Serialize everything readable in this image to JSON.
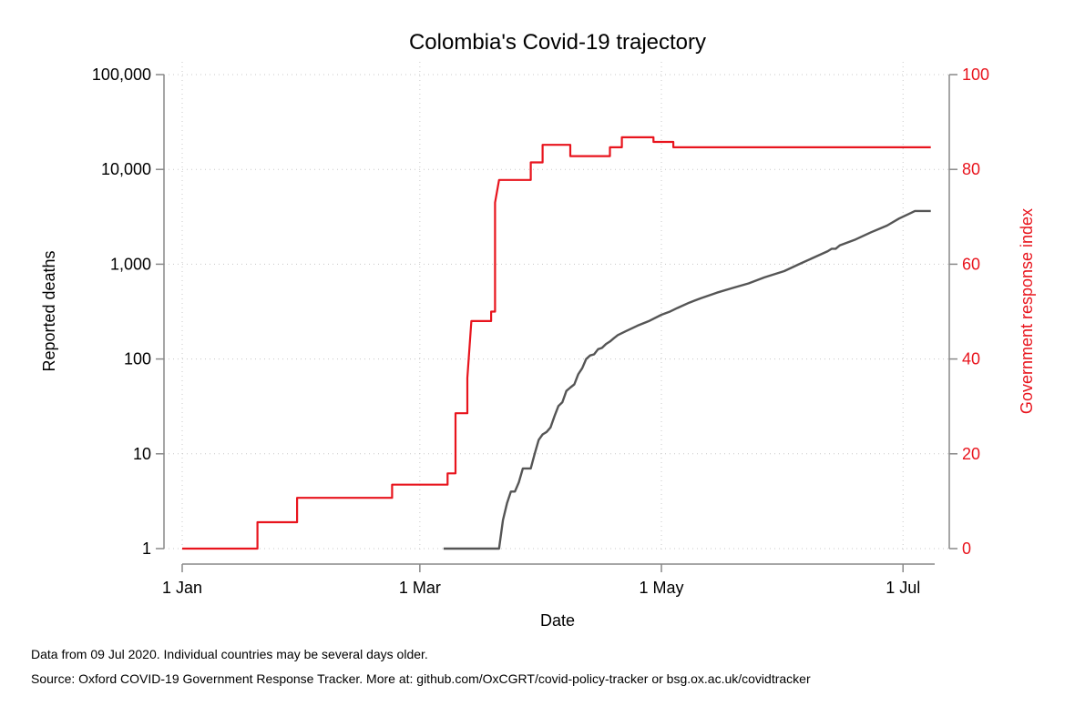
{
  "chart_data": {
    "type": "line",
    "title": "Colombia's Covid-19 trajectory",
    "xlabel": "Date",
    "ylabel_left": "Reported deaths",
    "ylabel_right": "Government response index",
    "x_ticks": [
      {
        "label": "1 Jan",
        "date": "2020-01-01"
      },
      {
        "label": "1 Mar",
        "date": "2020-03-01"
      },
      {
        "label": "1 May",
        "date": "2020-05-01"
      },
      {
        "label": "1 Jul",
        "date": "2020-07-01"
      }
    ],
    "xlim": [
      "2020-01-01",
      "2020-07-09"
    ],
    "y_left": {
      "scale": "log",
      "ylim": [
        1,
        100000
      ],
      "ticks": [
        {
          "label": "1",
          "value": 1
        },
        {
          "label": "10",
          "value": 10
        },
        {
          "label": "100",
          "value": 100
        },
        {
          "label": "1,000",
          "value": 1000
        },
        {
          "label": "10,000",
          "value": 10000
        },
        {
          "label": "100,000",
          "value": 100000
        }
      ]
    },
    "y_right": {
      "scale": "linear",
      "ylim": [
        0,
        100
      ],
      "ticks": [
        {
          "label": "0",
          "value": 0
        },
        {
          "label": "20",
          "value": 20
        },
        {
          "label": "40",
          "value": 40
        },
        {
          "label": "60",
          "value": 60
        },
        {
          "label": "80",
          "value": 80
        },
        {
          "label": "100",
          "value": 100
        }
      ]
    },
    "grid": true,
    "series": [
      {
        "axis": "right",
        "color": "#e8141d",
        "step": true,
        "points": [
          [
            "2020-01-01",
            0
          ],
          [
            "2020-01-20",
            0
          ],
          [
            "2020-01-20",
            5.56
          ],
          [
            "2020-01-30",
            5.56
          ],
          [
            "2020-01-30",
            10.71
          ],
          [
            "2020-02-23",
            10.71
          ],
          [
            "2020-02-23",
            13.49
          ],
          [
            "2020-03-08",
            13.49
          ],
          [
            "2020-03-08",
            15.87
          ],
          [
            "2020-03-10",
            15.87
          ],
          [
            "2020-03-10",
            28.57
          ],
          [
            "2020-03-13",
            28.57
          ],
          [
            "2020-03-13",
            36.0
          ],
          [
            "2020-03-14",
            48.0
          ],
          [
            "2020-03-19",
            48.0
          ],
          [
            "2020-03-19",
            50.0
          ],
          [
            "2020-03-20",
            50.0
          ],
          [
            "2020-03-20",
            73.0
          ],
          [
            "2020-03-21",
            77.78
          ],
          [
            "2020-03-29",
            77.78
          ],
          [
            "2020-03-29",
            81.48
          ],
          [
            "2020-04-01",
            81.48
          ],
          [
            "2020-04-01",
            85.19
          ],
          [
            "2020-04-08",
            85.19
          ],
          [
            "2020-04-08",
            82.8
          ],
          [
            "2020-04-18",
            82.8
          ],
          [
            "2020-04-18",
            84.66
          ],
          [
            "2020-04-21",
            84.66
          ],
          [
            "2020-04-21",
            86.77
          ],
          [
            "2020-04-29",
            86.77
          ],
          [
            "2020-04-29",
            85.8
          ],
          [
            "2020-05-04",
            85.8
          ],
          [
            "2020-05-04",
            84.66
          ],
          [
            "2020-07-08",
            84.66
          ]
        ]
      },
      {
        "axis": "left",
        "color": "#555555",
        "step": false,
        "points": [
          [
            "2020-03-07",
            1
          ],
          [
            "2020-03-21",
            1
          ],
          [
            "2020-03-22",
            2
          ],
          [
            "2020-03-23",
            3
          ],
          [
            "2020-03-24",
            4
          ],
          [
            "2020-03-25",
            4
          ],
          [
            "2020-03-26",
            5
          ],
          [
            "2020-03-27",
            7
          ],
          [
            "2020-03-29",
            7
          ],
          [
            "2020-03-30",
            10
          ],
          [
            "2020-03-31",
            14
          ],
          [
            "2020-04-01",
            16
          ],
          [
            "2020-04-02",
            17
          ],
          [
            "2020-04-03",
            19
          ],
          [
            "2020-04-04",
            25
          ],
          [
            "2020-04-05",
            32
          ],
          [
            "2020-04-06",
            35
          ],
          [
            "2020-04-07",
            46
          ],
          [
            "2020-04-08",
            50
          ],
          [
            "2020-04-09",
            54
          ],
          [
            "2020-04-10",
            69
          ],
          [
            "2020-04-11",
            80
          ],
          [
            "2020-04-12",
            100
          ],
          [
            "2020-04-13",
            109
          ],
          [
            "2020-04-14",
            112
          ],
          [
            "2020-04-15",
            127
          ],
          [
            "2020-04-16",
            131
          ],
          [
            "2020-04-17",
            144
          ],
          [
            "2020-04-18",
            153
          ],
          [
            "2020-04-19",
            166
          ],
          [
            "2020-04-20",
            179
          ],
          [
            "2020-04-22",
            196
          ],
          [
            "2020-04-25",
            225
          ],
          [
            "2020-04-28",
            253
          ],
          [
            "2020-05-01",
            293
          ],
          [
            "2020-05-03",
            314
          ],
          [
            "2020-05-05",
            345
          ],
          [
            "2020-05-08",
            393
          ],
          [
            "2020-05-11",
            439
          ],
          [
            "2020-05-15",
            501
          ],
          [
            "2020-05-19",
            562
          ],
          [
            "2020-05-23",
            628
          ],
          [
            "2020-05-27",
            726
          ],
          [
            "2020-06-01",
            845
          ],
          [
            "2020-06-05",
            1011
          ],
          [
            "2020-06-09",
            1205
          ],
          [
            "2020-06-12",
            1373
          ],
          [
            "2020-06-13",
            1456
          ],
          [
            "2020-06-14",
            1456
          ],
          [
            "2020-06-15",
            1577
          ],
          [
            "2020-06-19",
            1823
          ],
          [
            "2020-06-23",
            2175
          ],
          [
            "2020-06-27",
            2560
          ],
          [
            "2020-06-30",
            3034
          ],
          [
            "2020-07-03",
            3470
          ],
          [
            "2020-07-04",
            3641
          ],
          [
            "2020-07-08",
            3641
          ]
        ]
      }
    ]
  },
  "notes": {
    "line1": "Data from 09 Jul 2020. Individual countries may be several days older.",
    "line2": "Source: Oxford COVID-19 Government Response Tracker. More at: github.com/OxCGRT/covid-policy-tracker or bsg.ox.ac.uk/covidtracker"
  }
}
